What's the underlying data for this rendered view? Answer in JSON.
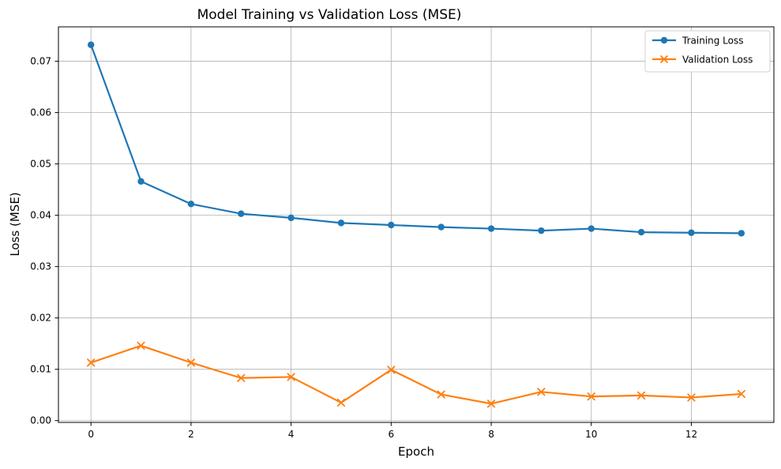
{
  "chart_data": {
    "type": "line",
    "title": "Model Training vs Validation Loss (MSE)",
    "xlabel": "Epoch",
    "ylabel": "Loss (MSE)",
    "x": [
      0,
      1,
      2,
      3,
      4,
      5,
      6,
      7,
      8,
      9,
      10,
      11,
      12,
      13
    ],
    "xlim": [
      -0.65,
      13.65
    ],
    "ylim": [
      -0.00035,
      0.0767
    ],
    "xticks": [
      0,
      2,
      4,
      6,
      8,
      10,
      12
    ],
    "yticks": [
      0.0,
      0.01,
      0.02,
      0.03,
      0.04,
      0.05,
      0.06,
      0.07
    ],
    "xtick_labels": [
      "0",
      "2",
      "4",
      "6",
      "8",
      "10",
      "12"
    ],
    "ytick_labels": [
      "0.00",
      "0.01",
      "0.02",
      "0.03",
      "0.04",
      "0.05",
      "0.06",
      "0.07"
    ],
    "grid": true,
    "legend_position": "top-right",
    "series": [
      {
        "name": "Training Loss",
        "color": "#1f77b4",
        "marker": "circle",
        "values": [
          0.0732,
          0.0466,
          0.0422,
          0.0403,
          0.0395,
          0.0385,
          0.0381,
          0.0377,
          0.0374,
          0.037,
          0.0374,
          0.0367,
          0.0366,
          0.0365
        ]
      },
      {
        "name": "Validation Loss",
        "color": "#ff7f0e",
        "marker": "x",
        "values": [
          0.0113,
          0.0146,
          0.0113,
          0.0083,
          0.0085,
          0.0035,
          0.0099,
          0.0051,
          0.0033,
          0.0056,
          0.0047,
          0.0049,
          0.0045,
          0.0052
        ]
      }
    ]
  }
}
